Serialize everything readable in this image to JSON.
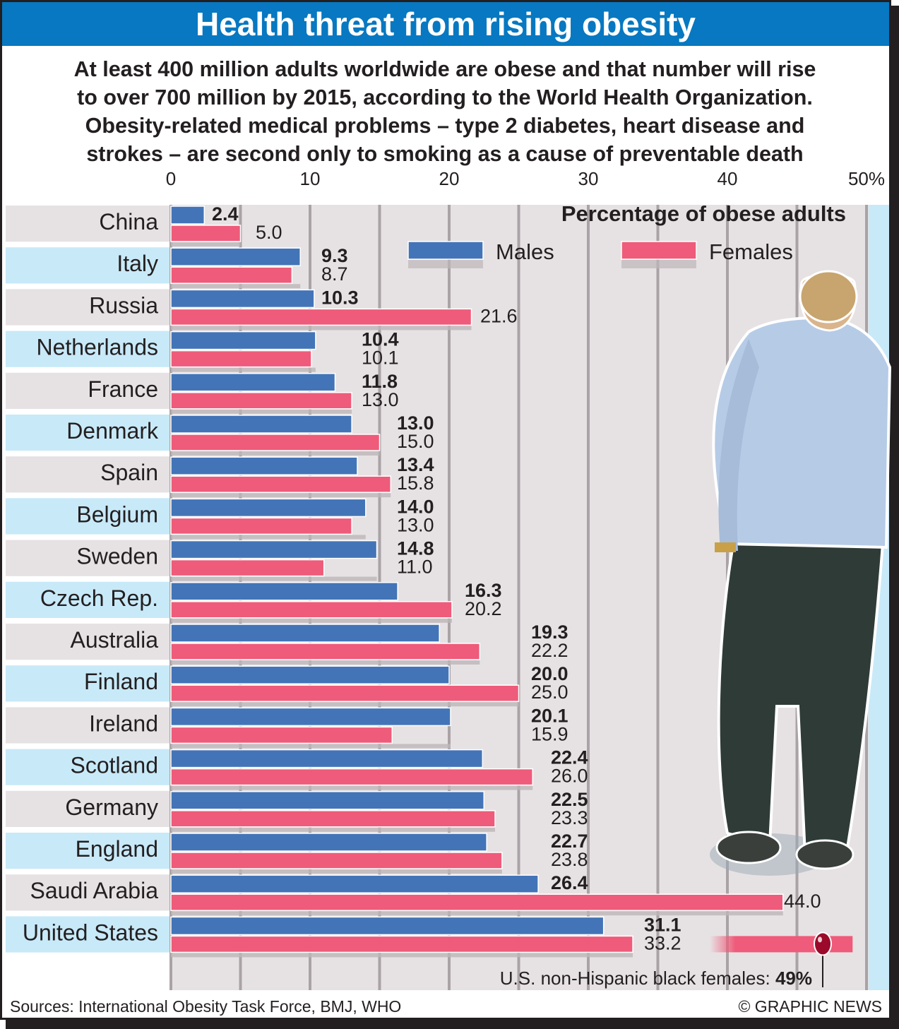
{
  "title": "Health threat from rising obesity",
  "intro_lines": [
    "At least 400 million adults worldwide are obese and that number will rise",
    "to over 700 million by 2015, according to the World Health Organization.",
    "Obesity-related medical problems – type 2 diabetes, heart disease and",
    "strokes – are second only to smoking as a cause of preventable death"
  ],
  "sources": "Sources: International Obesity Task Force, BMJ, WHO",
  "copyright": "© GRAPHIC NEWS",
  "colors": {
    "males": "#4374b7",
    "females": "#ef5b7a",
    "title_bar": "#0778c1",
    "row_light_blue": "#c8e9f8",
    "row_grey": "#e6e2e3",
    "marker": "#9b0a2a"
  },
  "chart_data": {
    "type": "bar",
    "orientation": "horizontal",
    "title": "Percentage of obese adults",
    "xlabel": "",
    "ylabel": "",
    "xlim": [
      0,
      50
    ],
    "x_ticks": [
      "0",
      "10",
      "20",
      "30",
      "40",
      "50%"
    ],
    "x_tick_values": [
      0,
      10,
      20,
      30,
      40,
      50
    ],
    "grid": true,
    "legend_position": "top-right",
    "categories": [
      "China",
      "Italy",
      "Russia",
      "Netherlands",
      "France",
      "Denmark",
      "Spain",
      "Belgium",
      "Sweden",
      "Czech Rep.",
      "Australia",
      "Finland",
      "Ireland",
      "Scotland",
      "Germany",
      "England",
      "Saudi Arabia",
      "United States"
    ],
    "series": [
      {
        "name": "Males",
        "values": [
          2.4,
          9.3,
          10.3,
          10.4,
          11.8,
          13.0,
          13.4,
          14.0,
          14.8,
          16.3,
          19.3,
          20.0,
          20.1,
          22.4,
          22.5,
          22.7,
          26.4,
          31.1
        ],
        "labels": [
          "2.4",
          "9.3",
          "10.3",
          "10.4",
          "11.8",
          "13.0",
          "13.4",
          "14.0",
          "14.8",
          "16.3",
          "19.3",
          "20.0",
          "20.1",
          "22.4",
          "22.5",
          "22.7",
          "26.4",
          "31.1"
        ]
      },
      {
        "name": "Females",
        "values": [
          5.0,
          8.7,
          21.6,
          10.1,
          13.0,
          15.0,
          15.8,
          13.0,
          11.0,
          20.2,
          22.2,
          25.0,
          15.9,
          26.0,
          23.3,
          23.8,
          44.0,
          33.2
        ],
        "labels": [
          "5.0",
          "8.7",
          "21.6",
          "10.1",
          "13.0",
          "15.0",
          "15.8",
          "13.0",
          "11.0",
          "20.2",
          "22.2",
          "25.0",
          "15.9",
          "26.0",
          "23.3",
          "23.8",
          "44.0",
          "33.2"
        ]
      }
    ],
    "annotation": {
      "text": "U.S. non-Hispanic black females: ",
      "value_text": "49%",
      "value": 49
    }
  }
}
